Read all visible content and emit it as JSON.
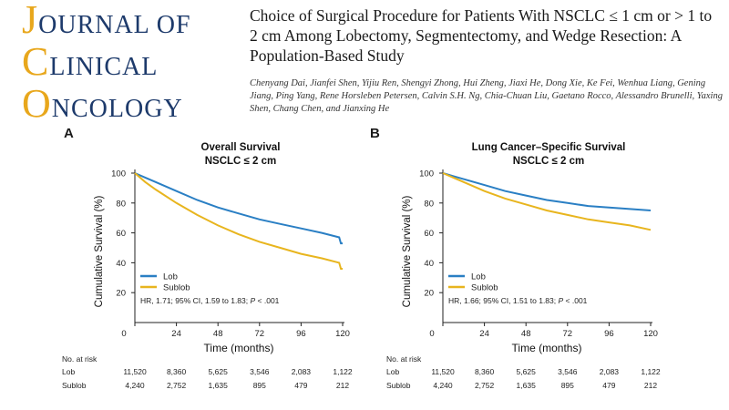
{
  "journal": {
    "line1": "OURNAL OF",
    "line1_cap": "J",
    "line2": "LINICAL",
    "line2_cap": "C",
    "line3": "NCOLOGY",
    "line3_cap": "O"
  },
  "article": {
    "title": "Choice of Surgical Procedure for Patients With NSCLC ≤ 1 cm or > 1 to 2 cm Among Lobectomy, Segmentectomy, and Wedge Resection: A Population-Based Study",
    "authors": "Chenyang Dai, Jianfei Shen, Yijiu Ren, Shengyi Zhong, Hui Zheng, Jiaxi He, Dong Xie, Ke Fei, Wenhua Liang, Gening Jiang, Ping Yang, Rene Horsleben Petersen, Calvin S.H. Ng, Chia-Chuan Liu, Gaetano Rocco, Alessandro Brunelli, Yaxing Shen, Chang Chen, and Jianxing He"
  },
  "colors": {
    "lob": "#2a7fc4",
    "sublob": "#e8b51e",
    "axis": "#222222"
  },
  "chart_data": [
    {
      "type": "line",
      "panel_label": "A",
      "title": "Overall Survival",
      "subtitle": "NSCLC ≤ 2 cm",
      "xlabel": "Time (months)",
      "ylabel": "Cumulative Survival (%)",
      "xlim": [
        0,
        120
      ],
      "ylim": [
        0,
        100
      ],
      "xticks": [
        0,
        24,
        48,
        72,
        96,
        120
      ],
      "yticks": [
        20,
        40,
        60,
        80,
        100
      ],
      "grid": false,
      "legend_position": "bottom-left",
      "series": [
        {
          "name": "Lob",
          "x": [
            0,
            6,
            12,
            24,
            36,
            48,
            60,
            72,
            84,
            96,
            108,
            118,
            119,
            120
          ],
          "y": [
            100,
            97,
            94,
            88,
            82,
            77,
            73,
            69,
            66,
            63,
            60,
            57,
            53,
            53
          ]
        },
        {
          "name": "Sublob",
          "x": [
            0,
            6,
            12,
            24,
            36,
            48,
            60,
            72,
            84,
            96,
            108,
            118,
            119,
            120
          ],
          "y": [
            100,
            94,
            89,
            80,
            72,
            65,
            59,
            54,
            50,
            46,
            43,
            40,
            36,
            36
          ]
        }
      ],
      "annotation": {
        "prefix": "HR, 1.71; 95% CI, 1.59 to 1.83; ",
        "p": "P",
        "suffix": " < .001"
      },
      "risk_table": {
        "header": "No. at risk",
        "rows": [
          {
            "label": "Lob",
            "values": [
              "11,520",
              "8,360",
              "5,625",
              "3,546",
              "2,083",
              "1,122"
            ]
          },
          {
            "label": "Sublob",
            "values": [
              "4,240",
              "2,752",
              "1,635",
              "895",
              "479",
              "212"
            ]
          }
        ]
      }
    },
    {
      "type": "line",
      "panel_label": "B",
      "title": "Lung Cancer–Specific Survival",
      "subtitle": "NSCLC ≤ 2 cm",
      "xlabel": "Time (months)",
      "ylabel": "Cumulative Survival (%)",
      "xlim": [
        0,
        120
      ],
      "ylim": [
        0,
        100
      ],
      "xticks": [
        0,
        24,
        48,
        72,
        96,
        120
      ],
      "yticks": [
        20,
        40,
        60,
        80,
        100
      ],
      "grid": false,
      "legend_position": "bottom-left",
      "series": [
        {
          "name": "Lob",
          "x": [
            0,
            6,
            12,
            24,
            36,
            48,
            60,
            72,
            84,
            96,
            108,
            120
          ],
          "y": [
            100,
            98,
            96,
            92,
            88,
            85,
            82,
            80,
            78,
            77,
            76,
            75
          ]
        },
        {
          "name": "Sublob",
          "x": [
            0,
            6,
            12,
            24,
            36,
            48,
            60,
            72,
            84,
            96,
            108,
            120
          ],
          "y": [
            100,
            97,
            94,
            88,
            83,
            79,
            75,
            72,
            69,
            67,
            65,
            62
          ]
        }
      ],
      "annotation": {
        "prefix": "HR, 1.66; 95% CI, 1.51 to 1.83; ",
        "p": "P",
        "suffix": " < .001"
      },
      "risk_table": {
        "header": "No. at risk",
        "rows": [
          {
            "label": "Lob",
            "values": [
              "11,520",
              "8,360",
              "5,625",
              "3,546",
              "2,083",
              "1,122"
            ]
          },
          {
            "label": "Sublob",
            "values": [
              "4,240",
              "2,752",
              "1,635",
              "895",
              "479",
              "212"
            ]
          }
        ]
      }
    }
  ]
}
